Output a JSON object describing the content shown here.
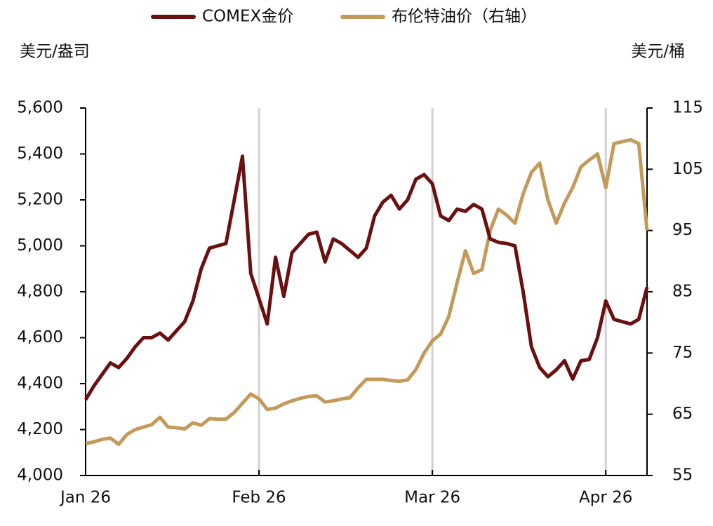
{
  "chart_data": {
    "type": "line",
    "legend": "top",
    "y_label": "美元/盎司",
    "y2_label": "美元/桶",
    "categories": [
      "Jan 26",
      null,
      null,
      null,
      null,
      null,
      null,
      null,
      null,
      null,
      null,
      null,
      null,
      null,
      null,
      null,
      null,
      null,
      null,
      null,
      null,
      "Feb 26",
      null,
      null,
      null,
      null,
      null,
      null,
      null,
      null,
      null,
      null,
      null,
      null,
      null,
      null,
      null,
      null,
      null,
      null,
      null,
      null,
      "Mar 26",
      null,
      null,
      null,
      null,
      null,
      null,
      null,
      null,
      null,
      null,
      null,
      null,
      null,
      null,
      null,
      null,
      null,
      null,
      null,
      null,
      "Apr 26",
      null,
      null,
      null,
      null,
      null
    ],
    "series": [
      {
        "name": "COMEX金价",
        "color": "#6b1010",
        "values": [
          4330,
          4390,
          4440,
          4490,
          4470,
          4510,
          4560,
          4600,
          4600,
          4620,
          4590,
          4630,
          4670,
          4760,
          4900,
          4990,
          5000,
          5010,
          5200,
          5390,
          4880,
          4770,
          4660,
          4950,
          4780,
          4970,
          5010,
          5050,
          5060,
          4930,
          5030,
          5010,
          4980,
          4950,
          4990,
          5130,
          5190,
          5220,
          5160,
          5200,
          5290,
          5310,
          5270,
          5130,
          5110,
          5160,
          5150,
          5180,
          5160,
          5030,
          5015,
          5010,
          5000,
          4800,
          4560,
          4470,
          4430,
          4460,
          4500,
          4420,
          4500,
          4505,
          4600,
          4760,
          4680,
          4670,
          4660,
          4680,
          4820
        ]
      },
      {
        "name": "布伦特油价（右轴）",
        "color": "#c49a5a",
        "axis": "y2",
        "values": [
          60.2,
          60.5,
          60.9,
          61.1,
          60.1,
          61.7,
          62.5,
          62.9,
          63.3,
          64.5,
          62.9,
          62.8,
          62.6,
          63.6,
          63.2,
          64.3,
          64.2,
          64.2,
          65.3,
          66.8,
          68.3,
          67.5,
          65.8,
          66.0,
          66.7,
          67.2,
          67.6,
          67.9,
          68.0,
          67.0,
          67.2,
          67.5,
          67.7,
          69.3,
          70.7,
          70.7,
          70.7,
          70.5,
          70.4,
          70.6,
          72.3,
          75.0,
          77.0,
          78.1,
          81.0,
          86.5,
          91.7,
          88.0,
          88.6,
          95.0,
          98.5,
          97.5,
          96.2,
          101.0,
          104.5,
          106.0,
          100.0,
          96.2,
          99.5,
          102.0,
          105.4,
          106.5,
          107.5,
          102.0,
          109.2,
          109.5,
          109.8,
          109.2,
          95.0
        ]
      }
    ],
    "ylim": [
      4000,
      5600
    ],
    "yticks": [
      {
        "value": 4000,
        "label": "4,000"
      },
      {
        "value": 4200,
        "label": "4,200"
      },
      {
        "value": 4400,
        "label": "4,400"
      },
      {
        "value": 4600,
        "label": "4,600"
      },
      {
        "value": 4800,
        "label": "4,800"
      },
      {
        "value": 5000,
        "label": "5,000"
      },
      {
        "value": 5200,
        "label": "5,200"
      },
      {
        "value": 5400,
        "label": "5,400"
      },
      {
        "value": 5600,
        "label": "5,600"
      }
    ],
    "y2lim": [
      55,
      115
    ],
    "y2ticks": [
      55,
      65,
      75,
      85,
      95,
      105,
      115
    ],
    "grid": true
  }
}
